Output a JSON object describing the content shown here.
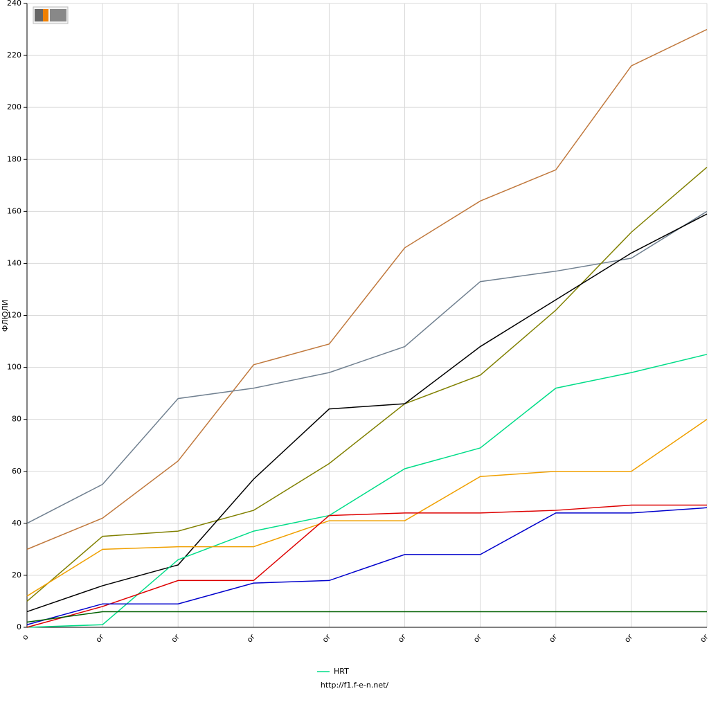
{
  "chart_data": {
    "type": "line",
    "y_label": "ФЛЮЛИ",
    "footer": "http://f1.f-e-n.net/",
    "categories": [
      "o",
      "or",
      "or",
      "or",
      "or",
      "or",
      "or",
      "or",
      "or",
      "or"
    ],
    "ylim": [
      0,
      240
    ],
    "yticks": [
      0,
      20,
      40,
      60,
      80,
      100,
      120,
      140,
      160,
      180,
      200,
      220,
      240
    ],
    "grid": true,
    "legend": "bottom",
    "series": [
      {
        "color": "#c0783c",
        "values": [
          30,
          42,
          64,
          101,
          109,
          146,
          164,
          176,
          216,
          230
        ]
      },
      {
        "color": "#708090",
        "values": [
          40,
          55,
          88,
          92,
          98,
          108,
          133,
          137,
          142,
          160
        ]
      },
      {
        "color": "#808000",
        "values": [
          10,
          35,
          37,
          45,
          63,
          86,
          97,
          122,
          152,
          177
        ]
      },
      {
        "color": "#000000",
        "values": [
          6,
          16,
          24,
          57,
          84,
          86,
          108,
          126,
          144,
          159
        ]
      },
      {
        "name": "HRT",
        "color": "#00dd88",
        "values": [
          0,
          1,
          26,
          37,
          43,
          61,
          69,
          92,
          98,
          105
        ]
      },
      {
        "color": "#f0a000",
        "values": [
          12,
          30,
          31,
          31,
          41,
          41,
          58,
          60,
          60,
          80
        ]
      },
      {
        "color": "#dd0000",
        "values": [
          0,
          8,
          18,
          18,
          43,
          44,
          44,
          45,
          47,
          47
        ]
      },
      {
        "color": "#0000cc",
        "values": [
          1,
          9,
          9,
          17,
          18,
          28,
          28,
          44,
          44,
          46
        ]
      },
      {
        "color": "#006000",
        "values": [
          2,
          6,
          6,
          6,
          6,
          6,
          6,
          6,
          6,
          6
        ]
      }
    ]
  }
}
